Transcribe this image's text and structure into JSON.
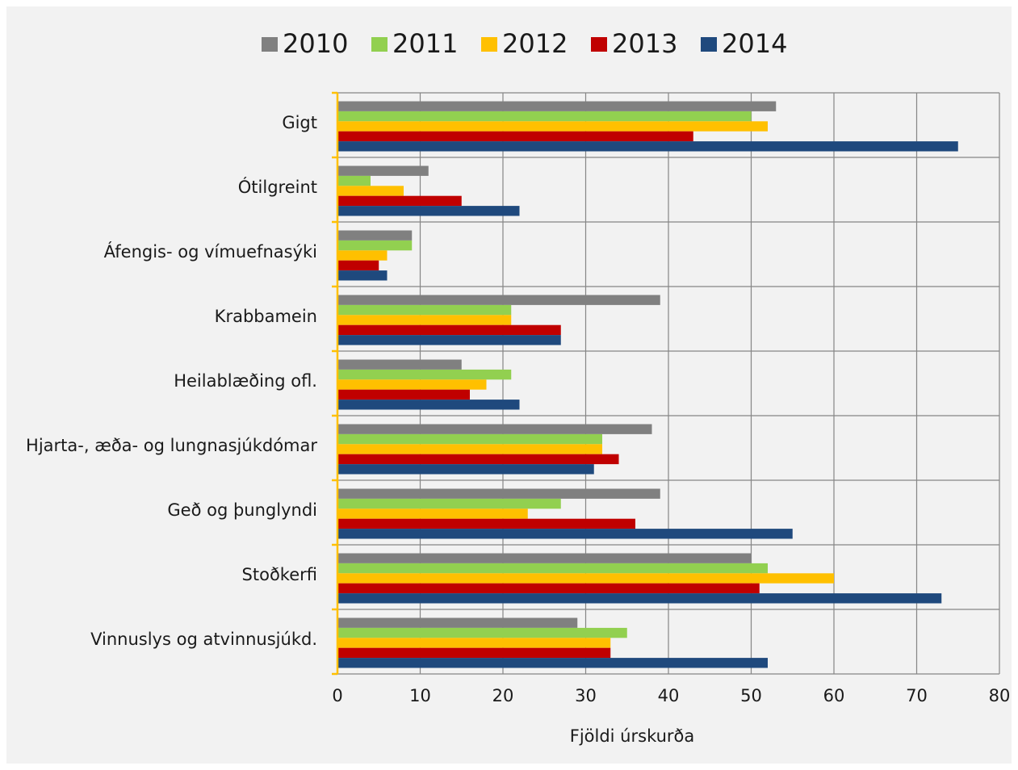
{
  "chart_data": {
    "type": "bar",
    "orientation": "horizontal",
    "categories": [
      "Gigt",
      "Ótilgreint",
      "Áfengis- og vímuefnasýki",
      "Krabbamein",
      "Heilablæðing ofl.",
      "Hjarta-, æða- og lungnasjúkdómar",
      "Geð og þunglyndi",
      "Stoðkerfi",
      "Vinnuslys og atvinnusjúkd."
    ],
    "series": [
      {
        "name": "2010",
        "color": "#808080",
        "values": [
          53,
          11,
          9,
          39,
          15,
          38,
          39,
          50,
          29
        ]
      },
      {
        "name": "2011",
        "color": "#92d050",
        "values": [
          50,
          4,
          9,
          21,
          21,
          32,
          27,
          52,
          35
        ]
      },
      {
        "name": "2012",
        "color": "#ffc000",
        "values": [
          52,
          8,
          6,
          21,
          18,
          32,
          23,
          60,
          33
        ]
      },
      {
        "name": "2013",
        "color": "#c00000",
        "values": [
          43,
          15,
          5,
          27,
          16,
          34,
          36,
          51,
          33
        ]
      },
      {
        "name": "2014",
        "color": "#1f497d",
        "values": [
          75,
          22,
          6,
          27,
          22,
          31,
          55,
          73,
          52
        ]
      }
    ],
    "xlabel": "Fjöldi úrskurða",
    "ylabel": "",
    "xlim": [
      0,
      80
    ],
    "xticks": [
      "0",
      "10",
      "20",
      "30",
      "40",
      "50",
      "60",
      "70",
      "80"
    ],
    "grid": true,
    "legend_position": "top",
    "axis_color": "#ffc000",
    "grid_color": "#868686"
  }
}
